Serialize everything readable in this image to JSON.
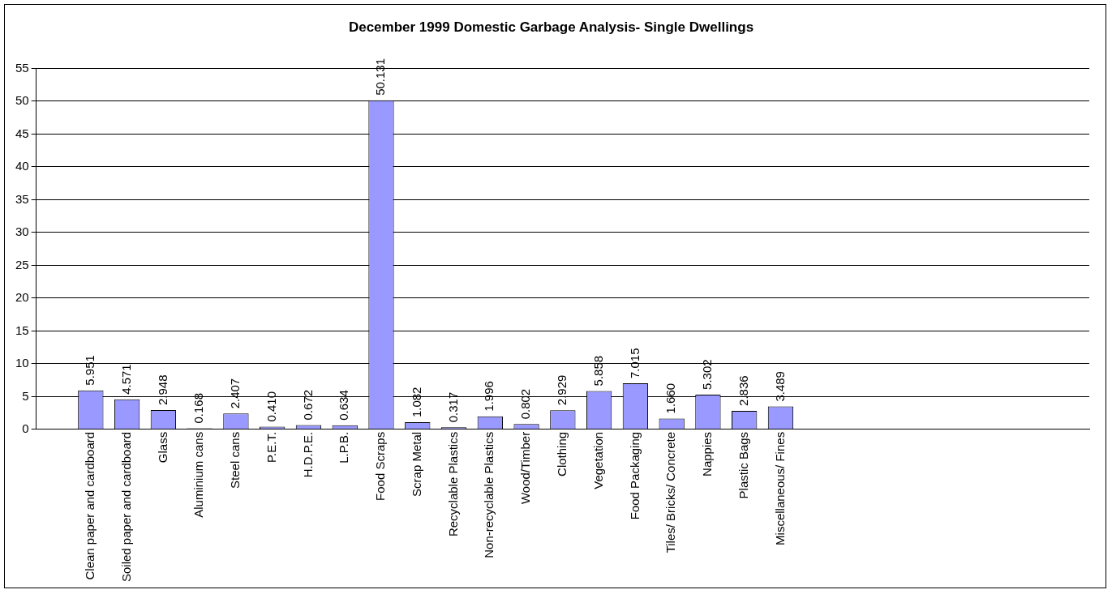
{
  "chart_data": {
    "type": "bar",
    "title": "December 1999 Domestic Garbage Analysis- Single Dwellings",
    "categories": [
      null,
      "Clean paper and cardboard",
      "Soiled paper and cardboard",
      "Glass",
      "Aluminium cans",
      "Steel cans",
      "P.E.T.",
      "H.D.P.E.",
      "L.P.B.",
      "Food Scraps",
      "Scrap Metal",
      "Recyclable Plastics",
      "Non-recyclable Plastics",
      "Wood/Timber",
      "Clothing",
      "Vegetation",
      "Food Packaging",
      "Tiles/ Bricks/ Concrete",
      "Nappies",
      "Plastic Bags",
      "Miscellaneous/ Fines",
      null,
      null,
      null,
      null,
      null,
      null,
      null,
      null
    ],
    "values": [
      null,
      5.951,
      4.571,
      2.948,
      0.168,
      2.407,
      0.41,
      0.672,
      0.634,
      50.131,
      1.082,
      0.317,
      1.996,
      0.802,
      2.929,
      5.858,
      7.015,
      1.66,
      5.302,
      2.836,
      3.489,
      null,
      null,
      null,
      null,
      null,
      null,
      null,
      null
    ],
    "value_labels": [
      null,
      "5.951",
      "4.571",
      "2.948",
      "0.168",
      "2.407",
      "0.410",
      "0.672",
      "0.634",
      "50.131",
      "1.082",
      "0.317",
      "1.996",
      "0.802",
      "2.929",
      "5.858",
      "7.015",
      "1.660",
      "5.302",
      "2.836",
      "3.489",
      null,
      null,
      null,
      null,
      null,
      null,
      null,
      null
    ],
    "color": "#9999ff",
    "ylim": [
      0,
      55
    ],
    "yticks": [
      0,
      5,
      10,
      15,
      20,
      25,
      30,
      35,
      40,
      45,
      50,
      55
    ],
    "grid": "y",
    "legend": false
  }
}
